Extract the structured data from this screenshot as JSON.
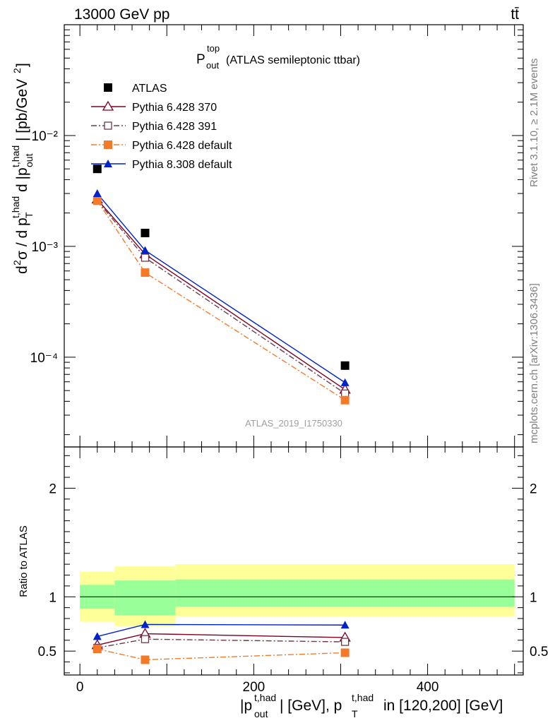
{
  "header": {
    "left": "13000 GeV pp",
    "right": "tt̄"
  },
  "title": {
    "main": "P",
    "sub": "out",
    "sup": "top",
    "note": "(ATLAS semileptonic ttbar)"
  },
  "watermark": "ATLAS_2019_I1750330",
  "side_labels": {
    "rivet": "Rivet 3.1.10, ≥ 2.1M events",
    "mcplots": "mcplots.cern.ch [arXiv:1306.3436]"
  },
  "chart_data": [
    {
      "type": "scatter",
      "panel": "main",
      "ylabel": "d²σ / d p_T^{t,had} d |p_out^{t,had}| [pb/GeV²]",
      "yscale": "log",
      "xlim": [
        -18,
        510
      ],
      "ylim": [
        1.55e-05,
        0.1
      ],
      "y_tick_labels": [
        "10⁻⁴",
        "10⁻³",
        "10⁻²"
      ],
      "x": [
        20,
        75,
        305
      ],
      "series": [
        {
          "name": "ATLAS",
          "color": "#000000",
          "marker": "square",
          "values": [
            0.005,
            0.00132,
            8.4e-05
          ]
        },
        {
          "name": "Pythia 6.428 370",
          "color": "#800020",
          "marker": "triangle-open",
          "line": "solid",
          "values": [
            0.00265,
            0.00085,
            5.1e-05
          ]
        },
        {
          "name": "Pythia 6.428 391",
          "color": "#6b3a4a",
          "marker": "square-open",
          "line": "dashdot",
          "values": [
            0.00258,
            0.00079,
            4.7e-05
          ]
        },
        {
          "name": "Pythia 6.428 default",
          "color": "#f47a2a",
          "marker": "square",
          "line": "dashdot",
          "values": [
            0.00258,
            0.00058,
            4.1e-05
          ]
        },
        {
          "name": "Pythia 8.308 default",
          "color": "#0022cc",
          "marker": "triangle",
          "line": "solid",
          "values": [
            0.003,
            0.00092,
            5.9e-05
          ]
        }
      ]
    },
    {
      "type": "line",
      "panel": "ratio",
      "ylabel": "Ratio to ATLAS",
      "xlabel": "|p_out^{t,had}| [GeV], p_T^{t,had} in [120,200] [GeV]",
      "xlim": [
        -18,
        510
      ],
      "ylim": [
        0.28,
        2.38
      ],
      "x_ticks": [
        0,
        200,
        400
      ],
      "y_ticks": [
        0.5,
        1,
        2
      ],
      "bands": [
        {
          "xmin": 0,
          "xmax": 40,
          "stat": [
            0.89,
            1.11
          ],
          "total": [
            0.77,
            1.23
          ]
        },
        {
          "xmin": 40,
          "xmax": 110,
          "stat": [
            0.83,
            1.15
          ],
          "total": [
            0.73,
            1.28
          ]
        },
        {
          "xmin": 110,
          "xmax": 500,
          "stat": [
            0.91,
            1.16
          ],
          "total": [
            0.82,
            1.3
          ]
        }
      ],
      "x": [
        20,
        75,
        305
      ],
      "series": [
        {
          "name": "Pythia 6.428 370",
          "color": "#800020",
          "marker": "triangle-open",
          "line": "solid",
          "values": [
            0.555,
            0.66,
            0.625
          ]
        },
        {
          "name": "Pythia 6.428 391",
          "color": "#6b3a4a",
          "marker": "square-open",
          "line": "dashdot",
          "values": [
            0.53,
            0.61,
            0.585
          ]
        },
        {
          "name": "Pythia 6.428 default",
          "color": "#f47a2a",
          "marker": "square",
          "line": "dashdot",
          "values": [
            0.52,
            0.42,
            0.485
          ]
        },
        {
          "name": "Pythia 8.308 default",
          "color": "#0022cc",
          "marker": "triangle",
          "line": "solid",
          "values": [
            0.635,
            0.745,
            0.74
          ]
        }
      ]
    }
  ]
}
